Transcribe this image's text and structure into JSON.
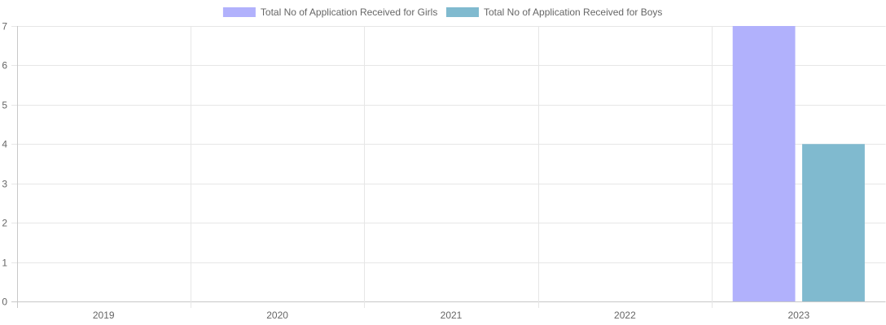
{
  "chart_data": {
    "type": "bar",
    "categories": [
      "2019",
      "2020",
      "2021",
      "2022",
      "2023"
    ],
    "series": [
      {
        "name": "Total No of Application Received for Girls",
        "color": "#b1b1fc",
        "values": [
          0,
          0,
          0,
          0,
          7
        ]
      },
      {
        "name": "Total No of Application Received for Boys",
        "color": "#80bacf",
        "values": [
          0,
          0,
          0,
          0,
          4
        ]
      }
    ],
    "title": "",
    "xlabel": "",
    "ylabel": "",
    "ylim": [
      0,
      7
    ],
    "yticks": [
      "0",
      "1",
      "2",
      "3",
      "4",
      "5",
      "6",
      "7"
    ],
    "grid": true,
    "legend_position": "top-center"
  }
}
